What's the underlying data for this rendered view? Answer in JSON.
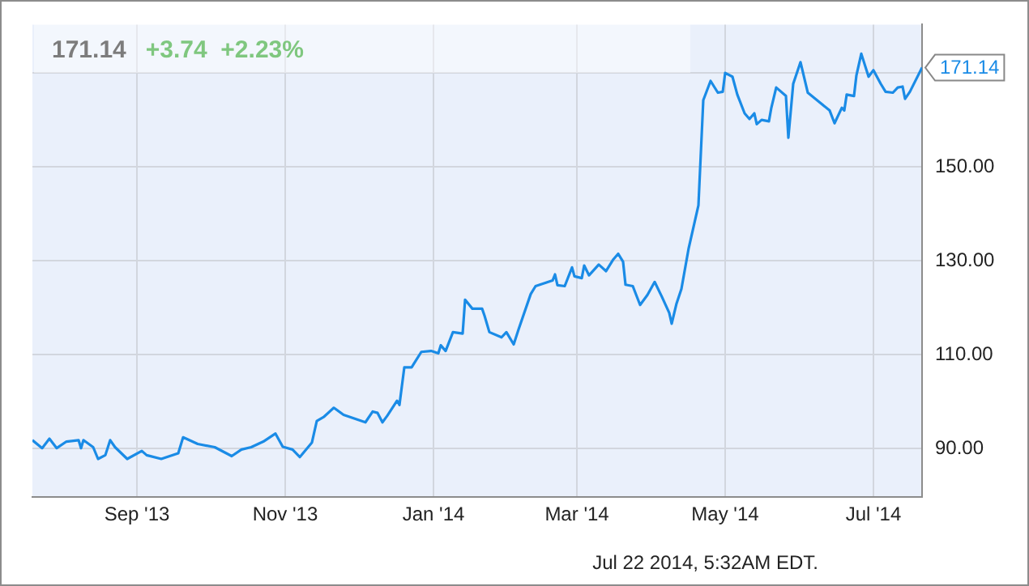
{
  "chart_data": {
    "type": "line",
    "title": "171.14",
    "subtitle": "+3.74  +2.23%",
    "annotations": [
      {
        "text": "171.14",
        "x": "2014-07-21",
        "y": 171.14
      },
      "Jul 22 2014, 5:32AM EDT."
    ],
    "xlim": [
      "2013-07-20",
      "2014-07-21"
    ],
    "xticks": [
      {
        "value": "2013-09-01",
        "label": "Sep '13"
      },
      {
        "value": "2013-11-01",
        "label": "Nov '13"
      },
      {
        "value": "2014-01-01",
        "label": "Jan '14"
      },
      {
        "value": "2014-03-01",
        "label": "Mar '14"
      },
      {
        "value": "2014-05-01",
        "label": "May '14"
      },
      {
        "value": "2014-07-01",
        "label": "Jul '14"
      }
    ],
    "ylim": [
      79.7,
      180.3
    ],
    "yticks": [
      {
        "value": 90,
        "label": "90.00"
      },
      {
        "value": 110,
        "label": "110.00"
      },
      {
        "value": 130,
        "label": "130.00"
      },
      {
        "value": 150,
        "label": "150.00"
      },
      {
        "value": 170,
        "label": null
      }
    ],
    "grid": true,
    "legend": false,
    "marker": "none",
    "line_style": "solid",
    "series": [
      {
        "color": "#1a8be6",
        "x": [
          "2013-07-20",
          "2013-07-24",
          "2013-07-27",
          "2013-07-30",
          "2013-08-03",
          "2013-08-08",
          "2013-08-09",
          "2013-08-10",
          "2013-08-14",
          "2013-08-16",
          "2013-08-19",
          "2013-08-21",
          "2013-08-23",
          "2013-08-28",
          "2013-09-03",
          "2013-09-05",
          "2013-09-11",
          "2013-09-18",
          "2013-09-20",
          "2013-09-26",
          "2013-10-03",
          "2013-10-10",
          "2013-10-14",
          "2013-10-18",
          "2013-10-23",
          "2013-10-28",
          "2013-10-31",
          "2013-11-04",
          "2013-11-07",
          "2013-11-12",
          "2013-11-14",
          "2013-11-17",
          "2013-11-21",
          "2013-11-25",
          "2013-12-04",
          "2013-12-07",
          "2013-12-09",
          "2013-12-11",
          "2013-12-13",
          "2013-12-17",
          "2013-12-18",
          "2013-12-20",
          "2013-12-23",
          "2013-12-27",
          "2013-12-31",
          "2014-01-03",
          "2014-01-04",
          "2014-01-06",
          "2014-01-09",
          "2014-01-13",
          "2014-01-14",
          "2014-01-17",
          "2014-01-21",
          "2014-01-22",
          "2014-01-24",
          "2014-01-29",
          "2014-01-31",
          "2014-02-03",
          "2014-02-05",
          "2014-02-10",
          "2014-02-12",
          "2014-02-19",
          "2014-02-20",
          "2014-02-21",
          "2014-02-24",
          "2014-02-27",
          "2014-02-28",
          "2014-03-03",
          "2014-03-04",
          "2014-03-06",
          "2014-03-10",
          "2014-03-13",
          "2014-03-16",
          "2014-03-18",
          "2014-03-20",
          "2014-03-21",
          "2014-03-24",
          "2014-03-27",
          "2014-03-30",
          "2014-04-02",
          "2014-04-05",
          "2014-04-08",
          "2014-04-09",
          "2014-04-11",
          "2014-04-13",
          "2014-04-16",
          "2014-04-20",
          "2014-04-22",
          "2014-04-25",
          "2014-04-28",
          "2014-04-30",
          "2014-05-01",
          "2014-05-04",
          "2014-05-06",
          "2014-05-09",
          "2014-05-11",
          "2014-05-13",
          "2014-05-14",
          "2014-05-16",
          "2014-05-19",
          "2014-05-20",
          "2014-05-22",
          "2014-05-26",
          "2014-05-27",
          "2014-05-29",
          "2014-06-01",
          "2014-06-04",
          "2014-06-09",
          "2014-06-13",
          "2014-06-15",
          "2014-06-18",
          "2014-06-19",
          "2014-06-20",
          "2014-06-23",
          "2014-06-24",
          "2014-06-26",
          "2014-06-29",
          "2014-07-01",
          "2014-07-04",
          "2014-07-06",
          "2014-07-09",
          "2014-07-11",
          "2014-07-13",
          "2014-07-14",
          "2014-07-16",
          "2014-07-21"
        ],
        "values": [
          91.8,
          90.1,
          92.1,
          90.1,
          91.5,
          91.8,
          90.1,
          91.8,
          90.3,
          87.8,
          88.6,
          91.8,
          90.3,
          87.8,
          89.5,
          88.6,
          87.8,
          89,
          92.4,
          91,
          90.3,
          88.4,
          89.8,
          90.3,
          91.5,
          93.2,
          90.4,
          89.8,
          88.2,
          91.3,
          95.9,
          96.8,
          98.7,
          97.2,
          95.6,
          97.9,
          97.6,
          95.6,
          97,
          100.2,
          99.3,
          107.3,
          107.3,
          110.6,
          110.8,
          110.3,
          112,
          110.8,
          114.8,
          114.5,
          121.7,
          119.8,
          119.8,
          118.3,
          114.8,
          113.7,
          114.8,
          112.2,
          115.4,
          122.9,
          124.6,
          125.8,
          127.1,
          124.8,
          124.6,
          128.6,
          126.7,
          126.3,
          129,
          126.9,
          129.2,
          127.8,
          130.3,
          131.5,
          129.8,
          124.9,
          124.6,
          120.6,
          122.7,
          125.5,
          122.3,
          118.9,
          116.6,
          120.9,
          124,
          132.7,
          141.8,
          164.2,
          168.3,
          165.8,
          166,
          170,
          169.2,
          165.4,
          161.4,
          160.2,
          161.4,
          159.1,
          160,
          159.7,
          162.6,
          166.9,
          165.1,
          156.2,
          167.7,
          172.3,
          165.8,
          163.7,
          162,
          159.3,
          162.6,
          162,
          165.4,
          165.1,
          169.5,
          174.1,
          169.2,
          170.6,
          167.7,
          166,
          165.8,
          166.9,
          167.1,
          164.5,
          166,
          171.14
        ]
      }
    ]
  }
}
